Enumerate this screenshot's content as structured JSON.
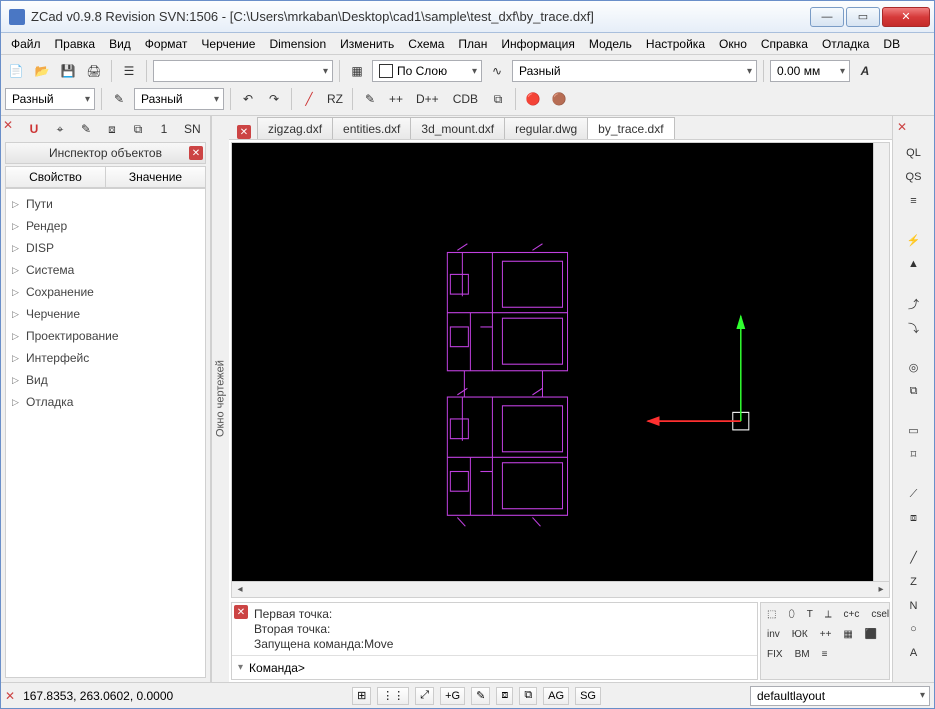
{
  "window": {
    "title": "ZCad v0.9.8 Revision SVN:1506 - [C:\\Users\\mrkaban\\Desktop\\cad1\\sample\\test_dxf\\by_trace.dxf]"
  },
  "menu": {
    "items": [
      "Файл",
      "Правка",
      "Вид",
      "Формат",
      "Черчение",
      "Dimension",
      "Изменить",
      "Схема",
      "План",
      "Информация",
      "Модель",
      "Настройка",
      "Окно",
      "Справка",
      "Отладка",
      "DB"
    ]
  },
  "toolbar1": {
    "layer_combo_width": 180,
    "layer_value": "",
    "color_label": "По Слою",
    "linetype_label": "Разный",
    "dim_value": "0.00 мм"
  },
  "toolbar2": {
    "left_combo": "Разный",
    "mid_combo": "Разный",
    "buttons": [
      "RZ",
      "++",
      "D++",
      "CDB"
    ]
  },
  "left": {
    "mini_buttons": [
      "U",
      "⌖",
      "✎",
      "⧈",
      "⧉"
    ],
    "mini_text": "1",
    "mini_sn": "SN",
    "inspector_title": "Инспектор объектов",
    "col_property": "Свойство",
    "col_value": "Значение",
    "tree": [
      "Пути",
      "Рендер",
      "DISP",
      "Система",
      "Сохранение",
      "Черчение",
      "Проектирование",
      "Интерфейс",
      "Вид",
      "Отладка"
    ]
  },
  "drawing": {
    "vertical_label": "Окно чертежей",
    "tabs": [
      "zigzag.dxf",
      "entities.dxf",
      "3d_mount.dxf",
      "regular.dwg",
      "by_trace.dxf"
    ],
    "active_tab": 4,
    "canvas": {
      "bg": "#000000",
      "plan_color": "#c040e0",
      "axis_x_color": "#ff3030",
      "axis_y_color": "#30ff30",
      "origin_box_color": "#ffffff"
    }
  },
  "cmd": {
    "log": [
      "Первая точка:",
      "Вторая точка:",
      "Запущена команда:Move"
    ],
    "prompt": "Команда>"
  },
  "aux": {
    "row1": [
      "⬚",
      "⬯",
      "T",
      "⟂",
      "c+c",
      "csel"
    ],
    "row2": [
      "inv",
      "ЮК",
      "++",
      "▦",
      "⬛"
    ],
    "row3": [
      "FIX",
      "BM",
      "≡"
    ]
  },
  "right": {
    "groups": [
      [
        "QL",
        "QS",
        "≡"
      ],
      [
        "⚡",
        "▲"
      ],
      [
        "⤴",
        "⤵"
      ],
      [
        "◎",
        "⧉"
      ],
      [
        "▭",
        "⌑"
      ],
      [
        "⟋",
        "⧈"
      ],
      [
        "╱",
        "Z",
        "N",
        "○",
        "A"
      ]
    ]
  },
  "status": {
    "coords": "167.8353, 263.0602, 0.0000",
    "toggles": [
      "⊞",
      "⋮⋮",
      "⤢",
      "+G",
      "✎",
      "⧈",
      "⧉",
      "AG",
      "SG"
    ],
    "layout": "defaultlayout"
  }
}
